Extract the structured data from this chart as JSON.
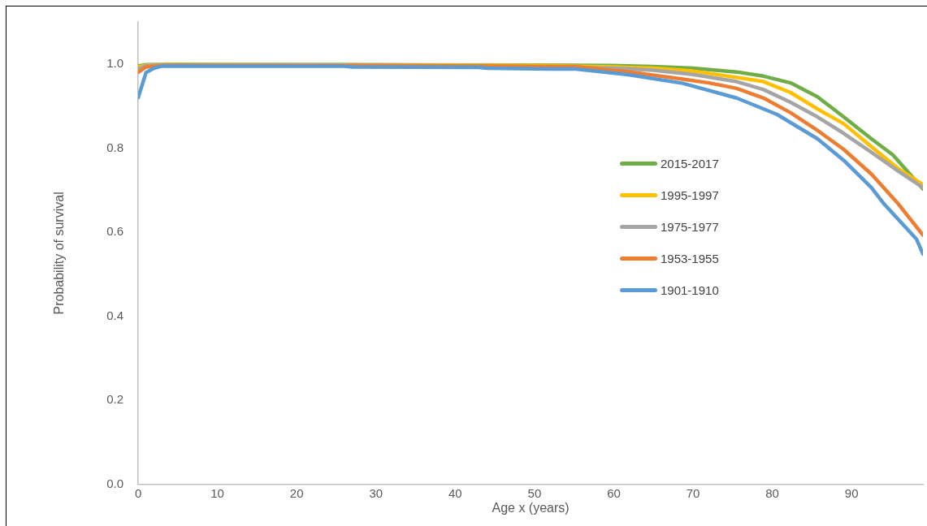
{
  "chart_data": {
    "type": "line",
    "xlabel": "Age x (years)",
    "ylabel": "Probability of survival",
    "xlim": [
      0,
      99
    ],
    "xticks": [
      0,
      10,
      20,
      30,
      40,
      50,
      60,
      70,
      80,
      90
    ],
    "ylim": [
      0,
      1.1
    ],
    "yticks": [
      {
        "value": 0,
        "label": "0.0"
      },
      0.2,
      0.4,
      0.6,
      0.8,
      {
        "value": 1,
        "label": "1.0"
      }
    ],
    "grid": false,
    "legend": "right",
    "marker": "none",
    "line_style": "solid",
    "series": [
      {
        "name": "2015-2017",
        "color": "#70ad47",
        "x": [
          0,
          1,
          5,
          30,
          50,
          60,
          65,
          70,
          75.5,
          78.9,
          82.3,
          85.7,
          89,
          92.5,
          95.2,
          99
        ],
        "values": [
          0.995,
          0.998,
          0.999,
          0.998,
          0.997,
          0.996,
          0.994,
          0.99,
          0.981,
          0.971,
          0.955,
          0.922,
          0.874,
          0.822,
          0.784,
          0.703
        ]
      },
      {
        "name": "1995-1997",
        "color": "#ffc000",
        "x": [
          0,
          1,
          5,
          30,
          50,
          60,
          65,
          70,
          75.5,
          78.9,
          82.3,
          85.7,
          89,
          92.5,
          95.9,
          99
        ],
        "values": [
          0.993,
          0.997,
          0.998,
          0.997,
          0.996,
          0.993,
          0.99,
          0.983,
          0.968,
          0.958,
          0.932,
          0.893,
          0.858,
          0.803,
          0.751,
          0.713
        ]
      },
      {
        "name": "1975-1977",
        "color": "#a5a5a5",
        "x": [
          0,
          1,
          5,
          30,
          50,
          60,
          65,
          70,
          75.5,
          78.9,
          82.3,
          85.7,
          89,
          92.5,
          95.9,
          99
        ],
        "values": [
          0.988,
          0.996,
          0.997,
          0.996,
          0.994,
          0.99,
          0.985,
          0.975,
          0.958,
          0.939,
          0.909,
          0.874,
          0.835,
          0.79,
          0.745,
          0.706
        ]
      },
      {
        "name": "1953-1955",
        "color": "#ed7d31",
        "x": [
          0,
          1,
          3,
          30,
          45,
          50,
          55,
          62,
          68.7,
          72,
          75.5,
          78.9,
          82.3,
          85.7,
          89,
          92.5,
          95.9,
          99
        ],
        "values": [
          0.98,
          0.993,
          0.996,
          0.996,
          0.995,
          0.994,
          0.994,
          0.981,
          0.964,
          0.955,
          0.942,
          0.919,
          0.884,
          0.842,
          0.797,
          0.738,
          0.667,
          0.593
        ]
      },
      {
        "name": "1901-1910",
        "color": "#5b9bd5",
        "x": [
          0,
          1,
          2,
          3,
          26,
          27,
          43,
          44,
          52,
          55.2,
          62,
          68.7,
          75.5,
          80.6,
          85.7,
          89,
          92.5,
          94.1,
          98.2,
          99
        ],
        "values": [
          0.92,
          0.98,
          0.99,
          0.995,
          0.995,
          0.993,
          0.992,
          0.99,
          0.988,
          0.988,
          0.974,
          0.954,
          0.919,
          0.88,
          0.822,
          0.771,
          0.706,
          0.667,
          0.583,
          0.548
        ]
      }
    ]
  }
}
